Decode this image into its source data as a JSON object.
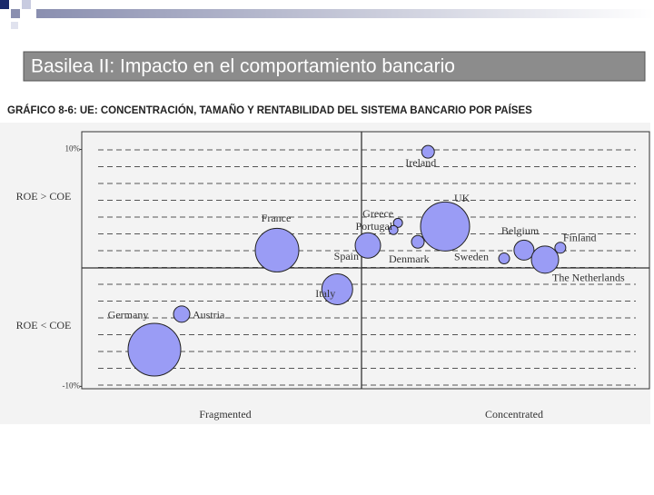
{
  "header": {
    "title": "Basilea II: Impacto en el comportamiento bancario"
  },
  "chart_data": {
    "type": "bubble",
    "title": "GRÁFICO 8-6: UE: CONCENTRACIÓN, TAMAÑO Y RENTABILIDAD DEL SISTEMA BANCARIO POR PAÍSES",
    "x_region_labels": [
      "Fragmented",
      "Concentrated"
    ],
    "y_region_labels": [
      "ROE > COE",
      "ROE < COE"
    ],
    "labels": [
      "Ireland",
      "Greece",
      "Portugal",
      "UK",
      "Denmark",
      "Spain",
      "France",
      "Italy",
      "Belgium",
      "Finland",
      "Sweden",
      "The Netherlands",
      "Austria",
      "Germany"
    ],
    "x": [
      61.0,
      55.7,
      54.9,
      64.0,
      59.2,
      50.4,
      34.4,
      45.0,
      77.9,
      84.3,
      74.4,
      81.6,
      17.6,
      12.8
    ],
    "values": [
      9.8,
      3.8,
      3.2,
      3.5,
      2.2,
      1.9,
      1.5,
      -1.8,
      1.5,
      1.7,
      0.8,
      0.7,
      -3.9,
      -6.9
    ],
    "sizes": [
      7,
      5,
      5,
      27,
      7,
      14,
      24,
      17,
      11,
      6,
      6,
      15,
      9,
      29
    ],
    "color": "#9a9cf5",
    "xlim": [
      0,
      100
    ],
    "ylim": [
      -10.2,
      11.5
    ],
    "yticks": [
      {
        "value": 10,
        "label": "10%"
      },
      {
        "value": -10,
        "label": "-10%"
      }
    ]
  }
}
